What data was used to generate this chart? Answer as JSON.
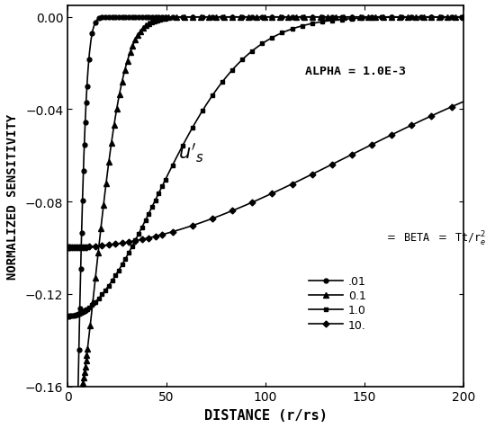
{
  "title": "",
  "xlabel": "DISTANCE (r/rs)",
  "ylabel": "NORMALIZED SENSITIVITY",
  "alpha": 0.001,
  "betas": [
    0.01,
    0.1,
    1.0,
    10.0
  ],
  "beta_labels": [
    ".01",
    "0.1",
    "1.0",
    "10."
  ],
  "alpha_label": "ALPHA = 1.0E-3",
  "xlim": [
    0,
    200
  ],
  "ylim": [
    -0.16,
    0.005
  ],
  "yticks": [
    0.0,
    -0.04,
    -0.08,
    -0.12,
    -0.16
  ],
  "xticks": [
    0,
    50,
    100,
    150,
    200
  ],
  "bg_color": "#ffffff",
  "markers": [
    "o",
    "^",
    "s",
    "D"
  ],
  "marker_sizes": [
    3.5,
    4.0,
    3.5,
    3.5
  ],
  "marker_every": [
    5,
    4,
    5,
    10
  ],
  "scale": 0.355
}
